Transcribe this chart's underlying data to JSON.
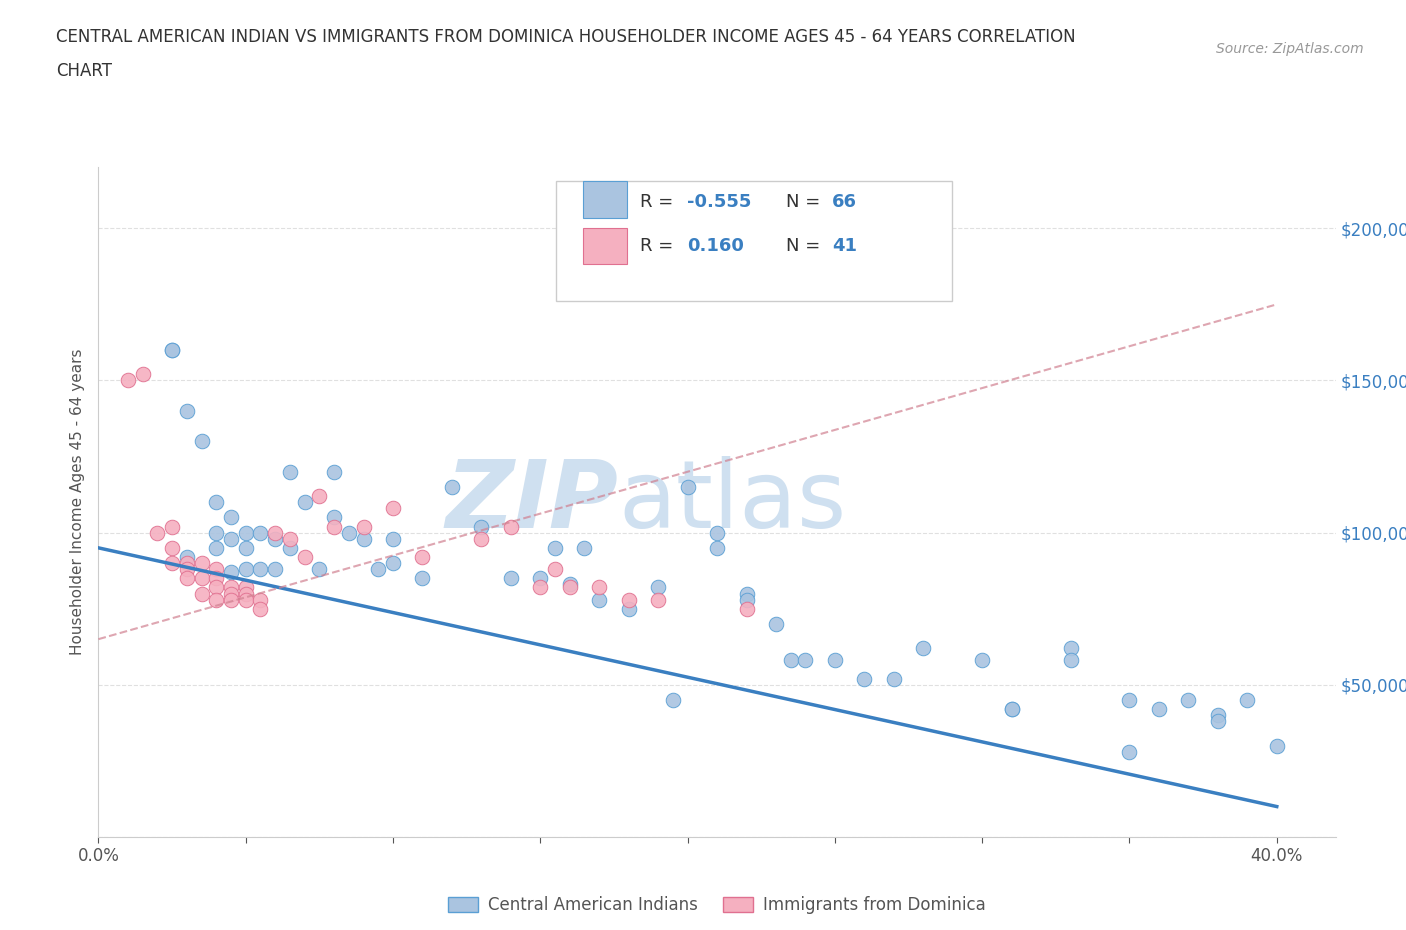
{
  "title_line1": "CENTRAL AMERICAN INDIAN VS IMMIGRANTS FROM DOMINICA HOUSEHOLDER INCOME AGES 45 - 64 YEARS CORRELATION",
  "title_line2": "CHART",
  "source": "Source: ZipAtlas.com",
  "ylabel": "Householder Income Ages 45 - 64 years",
  "xlim": [
    0.0,
    0.42
  ],
  "ylim": [
    0,
    220000
  ],
  "yticks": [
    0,
    50000,
    100000,
    150000,
    200000
  ],
  "xticks": [
    0.0,
    0.05,
    0.1,
    0.15,
    0.2,
    0.25,
    0.3,
    0.35,
    0.4
  ],
  "blue_R": -0.555,
  "blue_N": 66,
  "pink_R": 0.16,
  "pink_N": 41,
  "blue_color": "#aac4e0",
  "blue_edge": "#5a9fd4",
  "pink_color": "#f5b0c0",
  "pink_edge": "#e07090",
  "blue_line_color": "#3a7fc1",
  "pink_line_color": "#d08090",
  "grid_color": "#e0e0e0",
  "watermark_color": "#cfe0f0",
  "blue_scatter_x": [
    0.025,
    0.03,
    0.035,
    0.04,
    0.04,
    0.04,
    0.045,
    0.045,
    0.045,
    0.05,
    0.05,
    0.05,
    0.055,
    0.055,
    0.06,
    0.06,
    0.065,
    0.065,
    0.07,
    0.075,
    0.08,
    0.08,
    0.085,
    0.09,
    0.095,
    0.1,
    0.1,
    0.11,
    0.12,
    0.13,
    0.14,
    0.15,
    0.155,
    0.16,
    0.165,
    0.17,
    0.18,
    0.19,
    0.2,
    0.21,
    0.22,
    0.23,
    0.235,
    0.24,
    0.25,
    0.26,
    0.27,
    0.28,
    0.3,
    0.31,
    0.33,
    0.35,
    0.36,
    0.37,
    0.38,
    0.39,
    0.025,
    0.03,
    0.21,
    0.22,
    0.33,
    0.195,
    0.31,
    0.35,
    0.38,
    0.4
  ],
  "blue_scatter_y": [
    160000,
    140000,
    130000,
    110000,
    100000,
    95000,
    105000,
    98000,
    87000,
    100000,
    95000,
    88000,
    100000,
    88000,
    98000,
    88000,
    120000,
    95000,
    110000,
    88000,
    120000,
    105000,
    100000,
    98000,
    88000,
    98000,
    90000,
    85000,
    115000,
    102000,
    85000,
    85000,
    95000,
    83000,
    95000,
    78000,
    75000,
    82000,
    115000,
    100000,
    80000,
    70000,
    58000,
    58000,
    58000,
    52000,
    52000,
    62000,
    58000,
    42000,
    62000,
    45000,
    42000,
    45000,
    40000,
    45000,
    160000,
    92000,
    95000,
    78000,
    58000,
    45000,
    42000,
    28000,
    38000,
    30000
  ],
  "pink_scatter_x": [
    0.01,
    0.015,
    0.02,
    0.025,
    0.025,
    0.03,
    0.03,
    0.035,
    0.035,
    0.04,
    0.04,
    0.04,
    0.045,
    0.045,
    0.045,
    0.05,
    0.05,
    0.05,
    0.055,
    0.055,
    0.06,
    0.065,
    0.07,
    0.075,
    0.08,
    0.09,
    0.1,
    0.11,
    0.13,
    0.14,
    0.15,
    0.155,
    0.16,
    0.17,
    0.18,
    0.19,
    0.22,
    0.025,
    0.03,
    0.035,
    0.04
  ],
  "pink_scatter_y": [
    150000,
    152000,
    100000,
    102000,
    95000,
    90000,
    88000,
    90000,
    85000,
    88000,
    85000,
    82000,
    82000,
    80000,
    78000,
    82000,
    80000,
    78000,
    78000,
    75000,
    100000,
    98000,
    92000,
    112000,
    102000,
    102000,
    108000,
    92000,
    98000,
    102000,
    82000,
    88000,
    82000,
    82000,
    78000,
    78000,
    75000,
    90000,
    85000,
    80000,
    78000
  ]
}
